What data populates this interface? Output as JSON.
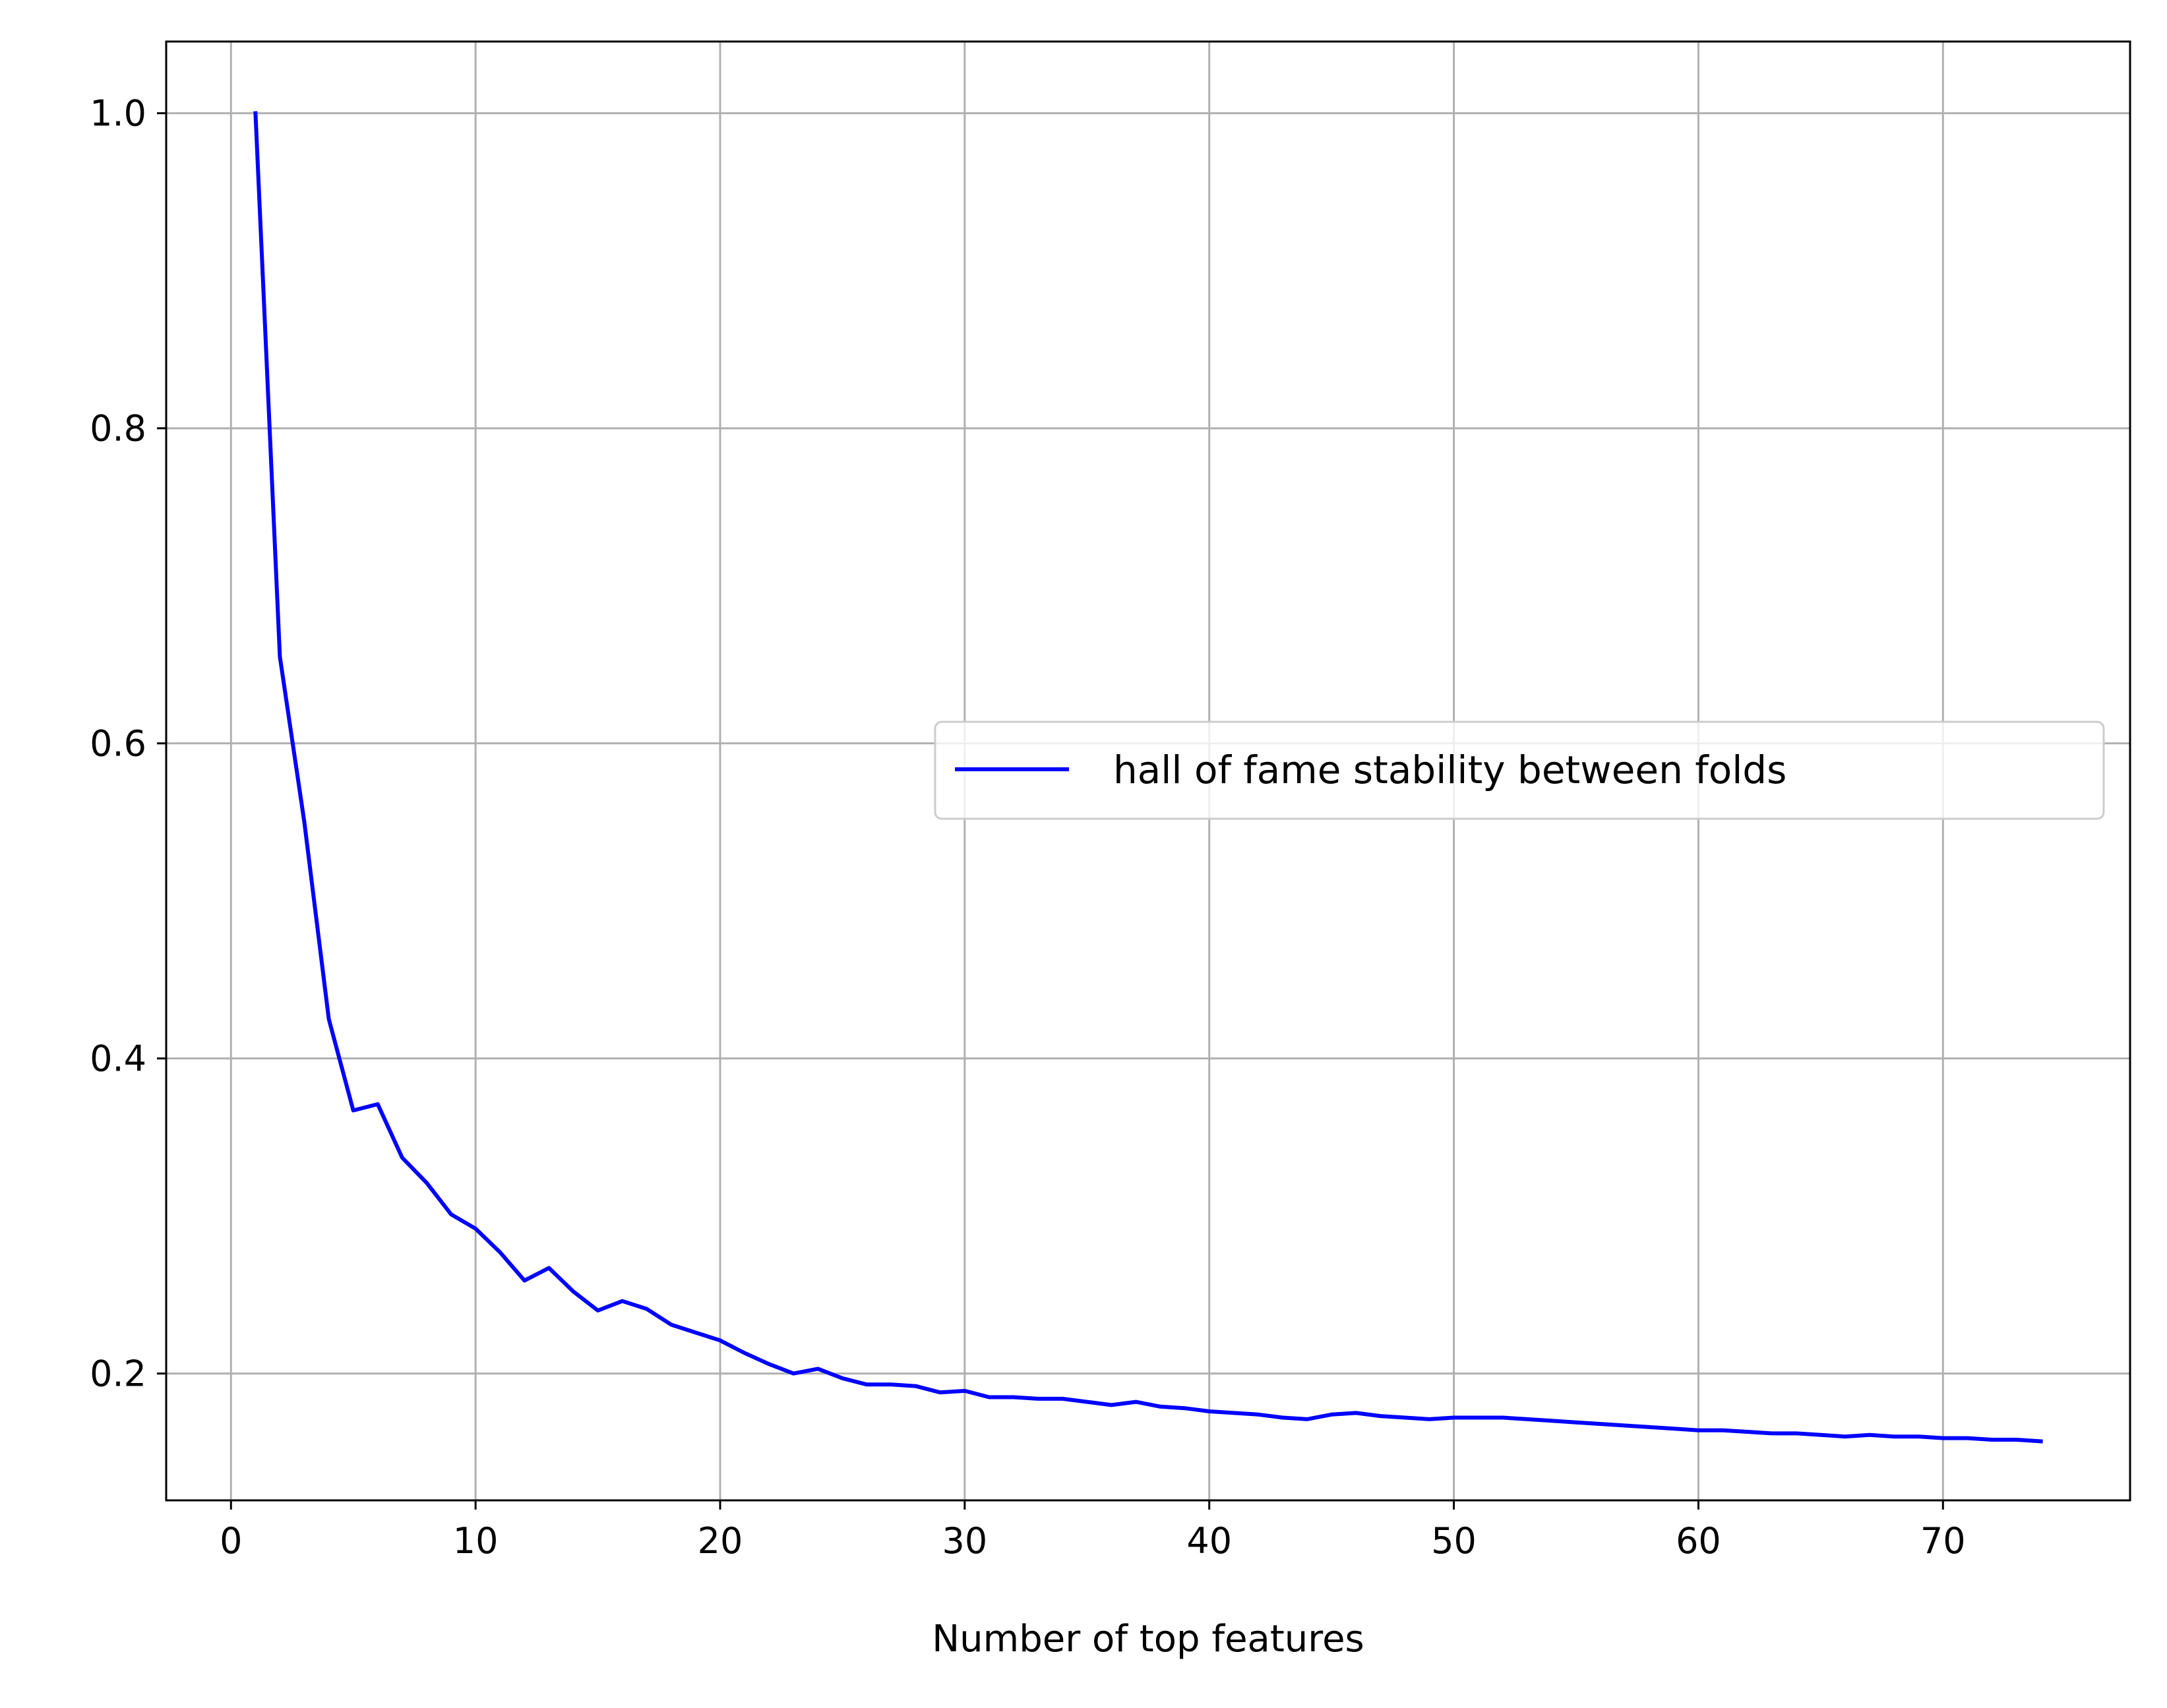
{
  "chart_data": {
    "type": "line",
    "title": "",
    "xlabel": "Number of top features",
    "ylabel": "",
    "xlim": [
      -2.65,
      77.65
    ],
    "ylim": [
      0.1195,
      1.0455
    ],
    "xticks": [
      0,
      10,
      20,
      30,
      40,
      50,
      60,
      70
    ],
    "yticks": [
      0.2,
      0.4,
      0.6,
      0.8,
      1.0
    ],
    "xtick_labels": [
      "0",
      "10",
      "20",
      "30",
      "40",
      "50",
      "60",
      "70"
    ],
    "ytick_labels": [
      "0.2",
      "0.4",
      "0.6",
      "0.8",
      "1.0"
    ],
    "grid": true,
    "legend_position": "center-right",
    "series": [
      {
        "name": "hall of fame stability between folds",
        "color": "#0000ff",
        "x": [
          1,
          2,
          3,
          4,
          5,
          6,
          7,
          8,
          9,
          10,
          11,
          12,
          13,
          14,
          15,
          16,
          17,
          18,
          19,
          20,
          21,
          22,
          23,
          24,
          25,
          26,
          27,
          28,
          29,
          30,
          31,
          32,
          33,
          34,
          35,
          36,
          37,
          38,
          39,
          40,
          41,
          42,
          43,
          44,
          45,
          46,
          47,
          48,
          49,
          50,
          51,
          52,
          53,
          54,
          55,
          56,
          57,
          58,
          59,
          60,
          61,
          62,
          63,
          64,
          65,
          66,
          67,
          68,
          69,
          70,
          71,
          72,
          73,
          74
        ],
        "y": [
          1.0,
          0.655,
          0.55,
          0.425,
          0.367,
          0.371,
          0.337,
          0.321,
          0.301,
          0.292,
          0.277,
          0.259,
          0.267,
          0.252,
          0.24,
          0.246,
          0.241,
          0.231,
          0.226,
          0.221,
          0.213,
          0.206,
          0.2,
          0.203,
          0.197,
          0.193,
          0.193,
          0.192,
          0.188,
          0.189,
          0.185,
          0.185,
          0.184,
          0.184,
          0.182,
          0.18,
          0.182,
          0.179,
          0.178,
          0.176,
          0.175,
          0.174,
          0.172,
          0.171,
          0.174,
          0.175,
          0.173,
          0.172,
          0.171,
          0.172,
          0.172,
          0.172,
          0.171,
          0.17,
          0.169,
          0.168,
          0.167,
          0.166,
          0.165,
          0.164,
          0.164,
          0.163,
          0.162,
          0.162,
          0.161,
          0.16,
          0.161,
          0.16,
          0.16,
          0.159,
          0.159,
          0.158,
          0.158,
          0.157
        ]
      }
    ]
  }
}
